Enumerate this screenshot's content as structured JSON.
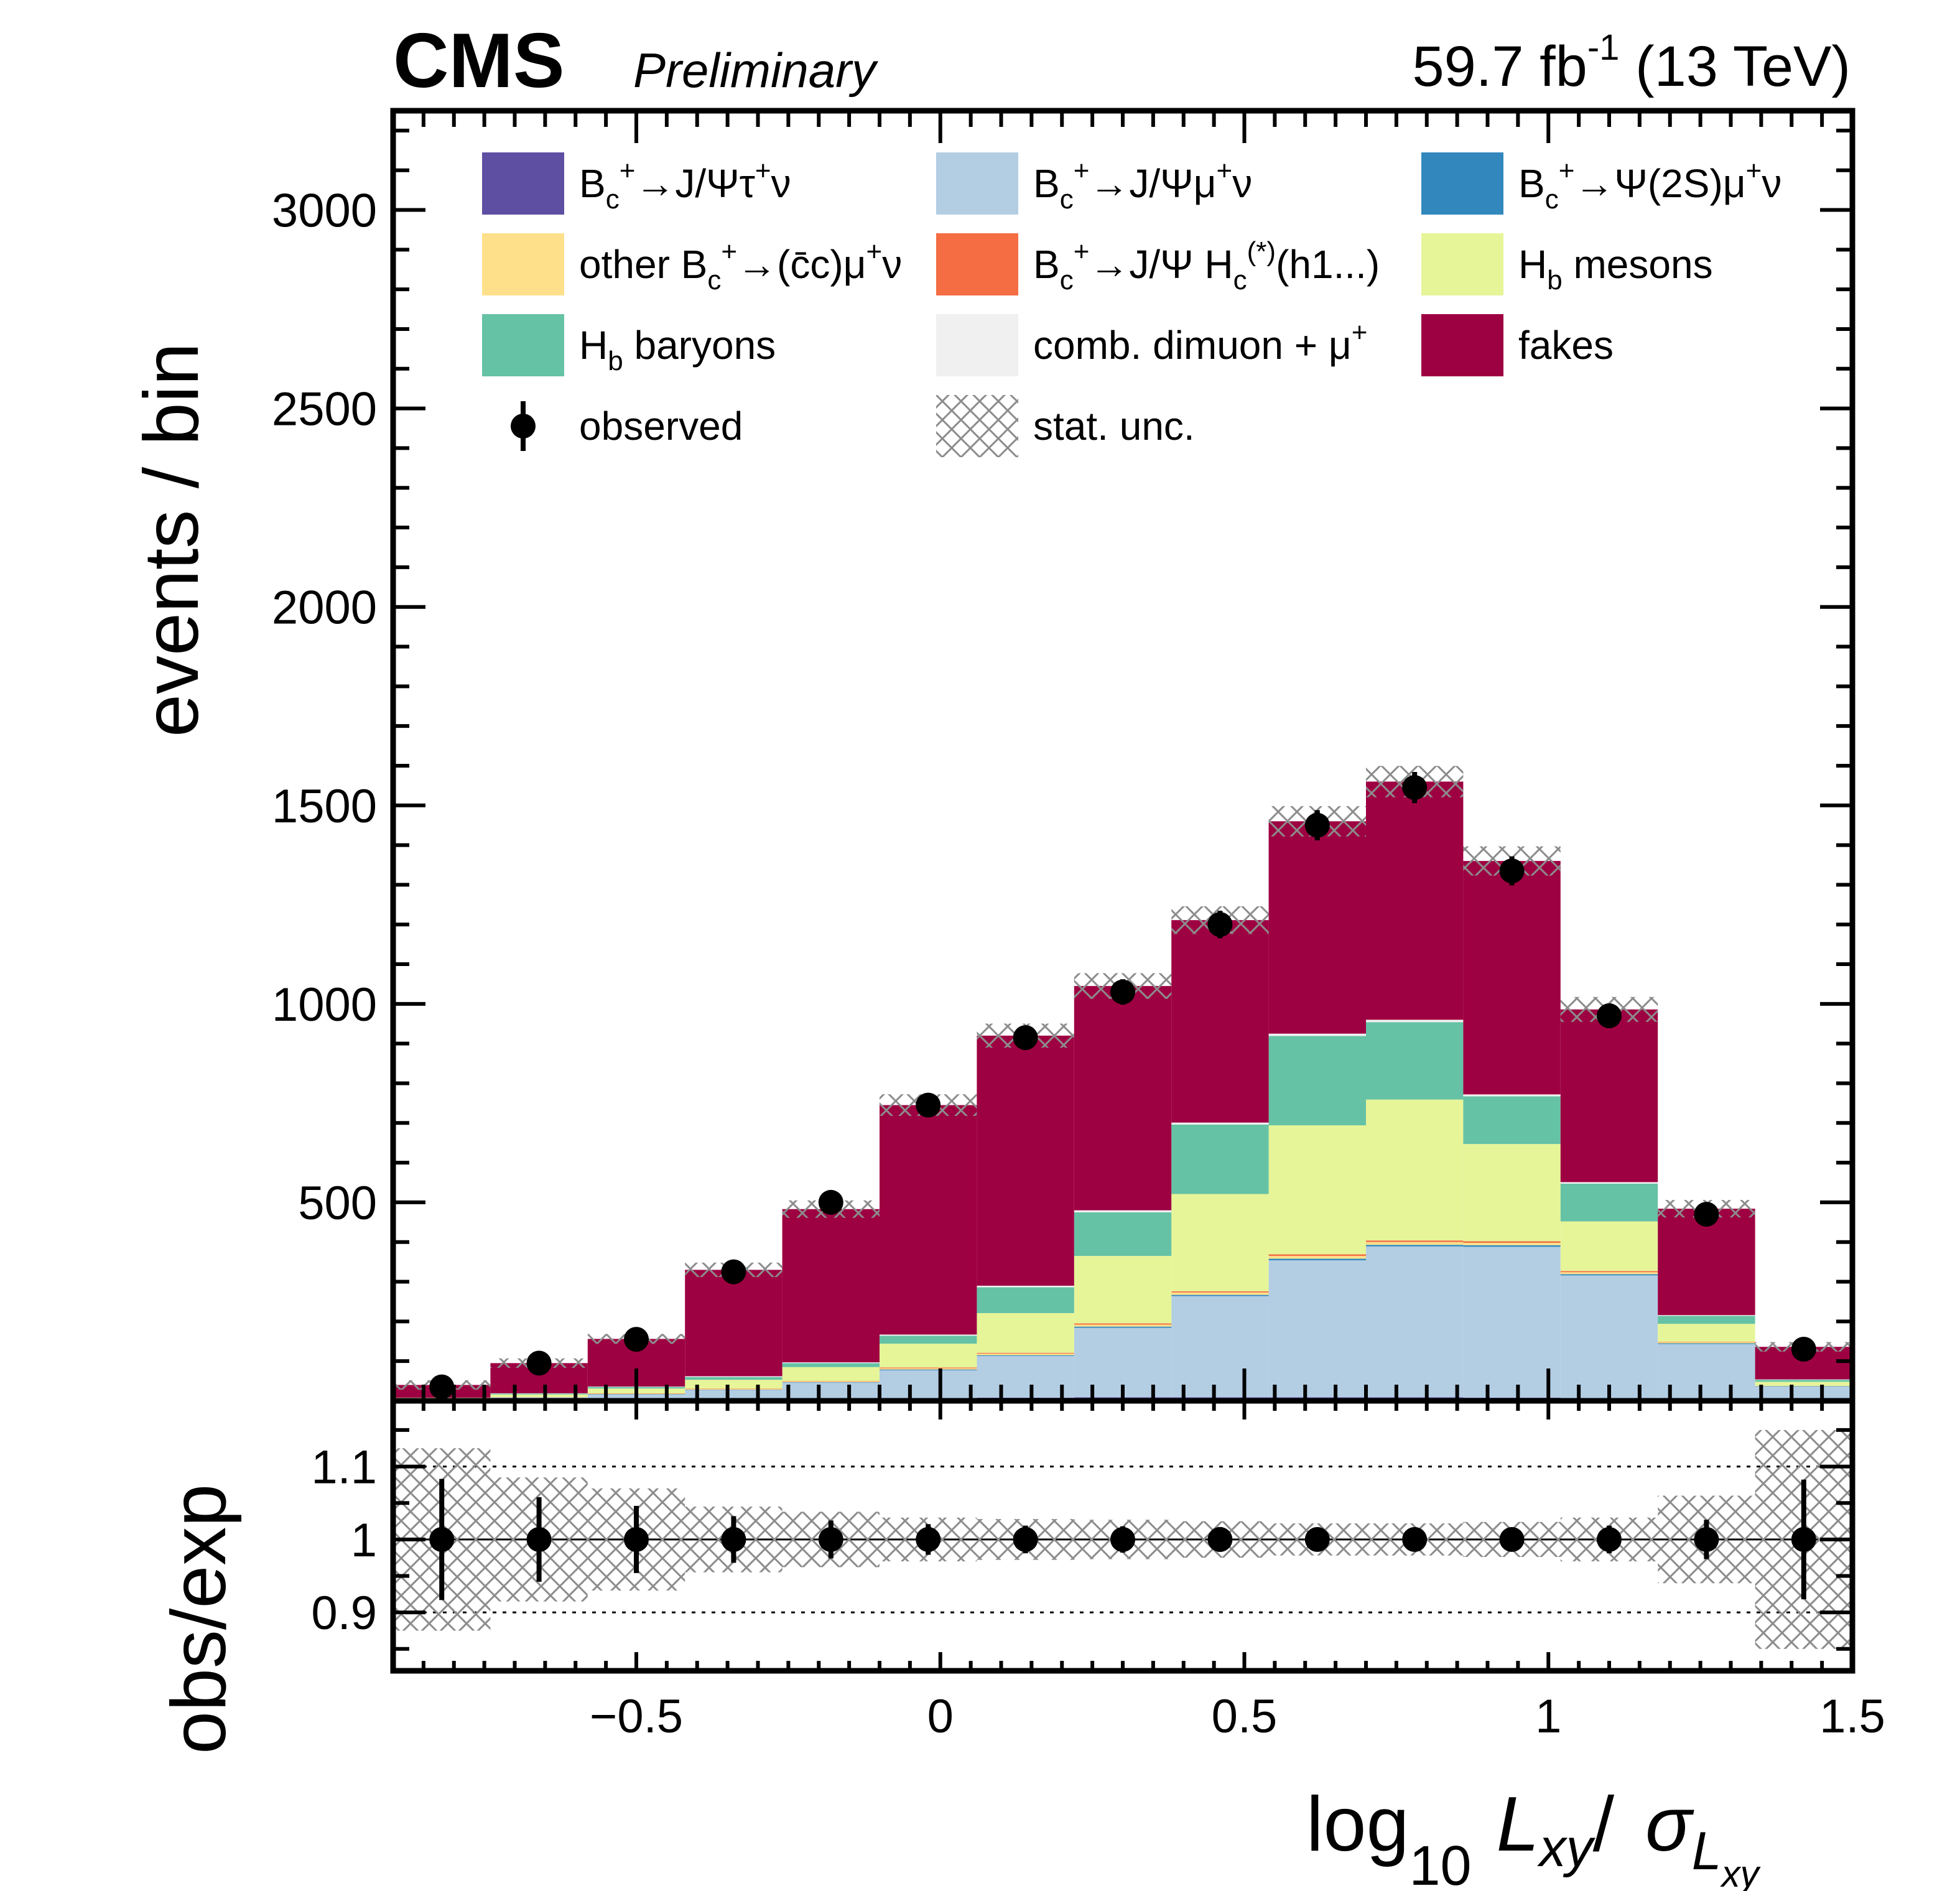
{
  "header": {
    "experiment": "CMS",
    "status": "Preliminary",
    "lumi_value": "59.7 fb",
    "lumi_exp": "-1",
    "lumi_energy": " (13 TeV)"
  },
  "chart_data": [
    {
      "type": "bar",
      "stacked": true,
      "xlabel_main": "log",
      "xlabel_sub": "10",
      "xlabel_rest": "L",
      "xlabel_rest_sub": "xy",
      "xlabel_slash": "/",
      "xlabel_sigma": "σ",
      "xlabel_sigma_sub": "L",
      "xlabel_sigma_subsub": "xy",
      "ylabel": "events / bin",
      "xlim": [
        -0.9,
        1.5
      ],
      "ylim": [
        0,
        3250
      ],
      "bin_edges": [
        -0.9,
        -0.74,
        -0.58,
        -0.42,
        -0.26,
        -0.1,
        0.06,
        0.22,
        0.38,
        0.54,
        0.7,
        0.86,
        1.02,
        1.18,
        1.34,
        1.5
      ],
      "xticks": [
        "−0.5",
        "0",
        "0.5",
        "1",
        "1.5"
      ],
      "xtick_values": [
        -0.5,
        0,
        0.5,
        1,
        1.5
      ],
      "yticks": [
        "500",
        "1000",
        "1500",
        "2000",
        "2500",
        "3000"
      ],
      "ytick_values": [
        500,
        1000,
        1500,
        2000,
        2500,
        3000
      ],
      "series": [
        {
          "name": "B_c^+→J/Ψτ^+ν",
          "color": "#5e4fa2",
          "values": [
            2,
            3,
            4,
            5,
            6,
            7,
            8,
            9,
            9,
            9,
            9,
            8,
            6,
            3,
            1
          ]
        },
        {
          "name": "B_c^+→J/Ψμ^+ν",
          "color": "#b3cde3",
          "values": [
            3,
            6,
            12,
            22,
            40,
            70,
            105,
            175,
            255,
            345,
            380,
            380,
            310,
            140,
            35
          ]
        },
        {
          "name": "B_c^+→Ψ(2S)μ^+ν",
          "color": "#3288bd",
          "values": [
            0,
            0,
            1,
            1,
            1,
            2,
            2,
            3,
            3,
            4,
            4,
            4,
            3,
            2,
            1
          ]
        },
        {
          "name": "other B_c^+→(c̄c)μ^+ν",
          "color": "#fee08b",
          "values": [
            0,
            1,
            1,
            2,
            2,
            3,
            4,
            5,
            6,
            7,
            7,
            6,
            5,
            3,
            1
          ]
        },
        {
          "name": "B_c^+→J/Ψ H_c^(*)(h1...)",
          "color": "#f46d43",
          "values": [
            0,
            0,
            1,
            1,
            1,
            2,
            2,
            3,
            3,
            4,
            4,
            4,
            3,
            1,
            0
          ]
        },
        {
          "name": "H_b mesons",
          "color": "#e6f598",
          "values": [
            3,
            6,
            12,
            22,
            35,
            60,
            100,
            170,
            245,
            325,
            355,
            245,
            125,
            45,
            10
          ]
        },
        {
          "name": "H_b baryons",
          "color": "#66c2a5",
          "values": [
            0,
            2,
            4,
            7,
            10,
            20,
            65,
            110,
            175,
            225,
            195,
            120,
            95,
            20,
            5
          ]
        },
        {
          "name": "comb. dimuon + μ^+",
          "color": "#f0f0f0",
          "values": [
            0,
            1,
            1,
            2,
            2,
            3,
            4,
            5,
            5,
            6,
            6,
            5,
            4,
            2,
            1
          ]
        },
        {
          "name": "fakes",
          "color": "#9e0142",
          "values": [
            32,
            76,
            120,
            268,
            386,
            578,
            630,
            565,
            510,
            535,
            600,
            588,
            435,
            268,
            82
          ]
        }
      ],
      "observed": {
        "name": "observed",
        "values": [
          35,
          95,
          155,
          325,
          500,
          745,
          915,
          1030,
          1200,
          1450,
          1545,
          1335,
          970,
          470,
          130
        ]
      },
      "stat_unc": {
        "name": "stat. unc."
      },
      "legend_position": "top"
    },
    {
      "type": "scatter",
      "ylabel": "obs/exp",
      "ylim": [
        0.82,
        1.19
      ],
      "yticks": [
        "0.9",
        "1",
        "1.1"
      ],
      "ytick_values": [
        0.9,
        1.0,
        1.1
      ],
      "reference_lines": [
        0.9,
        1.0,
        1.1
      ],
      "ratio": [
        1,
        1,
        1,
        1,
        1,
        1,
        1,
        1,
        1,
        1,
        1,
        1,
        1,
        1,
        1
      ],
      "ratio_err": [
        0.083,
        0.058,
        0.046,
        0.032,
        0.026,
        0.021,
        0.019,
        0.018,
        0.017,
        0.015,
        0.015,
        0.016,
        0.019,
        0.027,
        0.082
      ],
      "band_half_width": [
        0.125,
        0.085,
        0.07,
        0.045,
        0.038,
        0.03,
        0.028,
        0.027,
        0.025,
        0.022,
        0.022,
        0.024,
        0.03,
        0.06,
        0.15
      ]
    }
  ]
}
